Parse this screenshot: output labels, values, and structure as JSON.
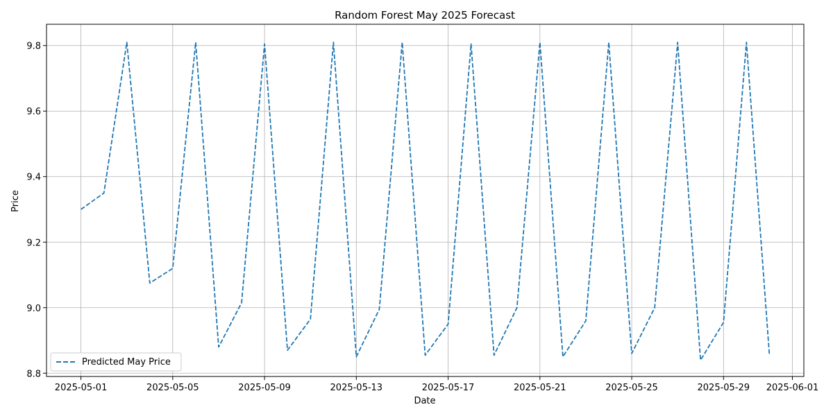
{
  "chart_data": {
    "type": "line",
    "title": "Random Forest May 2025 Forecast",
    "xlabel": "Date",
    "ylabel": "Price",
    "x_tick_labels": [
      "2025-05-01",
      "2025-05-05",
      "2025-05-09",
      "2025-05-13",
      "2025-05-17",
      "2025-05-21",
      "2025-05-25",
      "2025-05-29",
      "2025-06-01"
    ],
    "y_tick_labels": [
      "8.8",
      "9.0",
      "9.2",
      "9.4",
      "9.6",
      "9.8"
    ],
    "xlim": [
      "2025-04-29 12:00",
      "2025-06-01 12:00"
    ],
    "ylim": [
      8.79,
      9.865
    ],
    "grid": true,
    "legend_position": "lower-left",
    "series": [
      {
        "name": "Predicted May Price",
        "color": "#1f77b4",
        "line_style": "dashed",
        "x": [
          "2025-05-01",
          "2025-05-02",
          "2025-05-03",
          "2025-05-04",
          "2025-05-05",
          "2025-05-06",
          "2025-05-07",
          "2025-05-08",
          "2025-05-09",
          "2025-05-10",
          "2025-05-11",
          "2025-05-12",
          "2025-05-13",
          "2025-05-14",
          "2025-05-15",
          "2025-05-16",
          "2025-05-17",
          "2025-05-18",
          "2025-05-19",
          "2025-05-20",
          "2025-05-21",
          "2025-05-22",
          "2025-05-23",
          "2025-05-24",
          "2025-05-25",
          "2025-05-26",
          "2025-05-27",
          "2025-05-28",
          "2025-05-29",
          "2025-05-30",
          "2025-05-31"
        ],
        "y": [
          9.3,
          9.35,
          9.81,
          9.075,
          9.12,
          9.81,
          8.88,
          9.015,
          9.805,
          8.87,
          8.965,
          9.81,
          8.85,
          8.995,
          9.81,
          8.855,
          8.95,
          9.805,
          8.855,
          9.0,
          9.81,
          8.85,
          8.96,
          9.81,
          8.86,
          9.0,
          9.81,
          8.84,
          8.955,
          9.81,
          8.855
        ]
      }
    ]
  }
}
